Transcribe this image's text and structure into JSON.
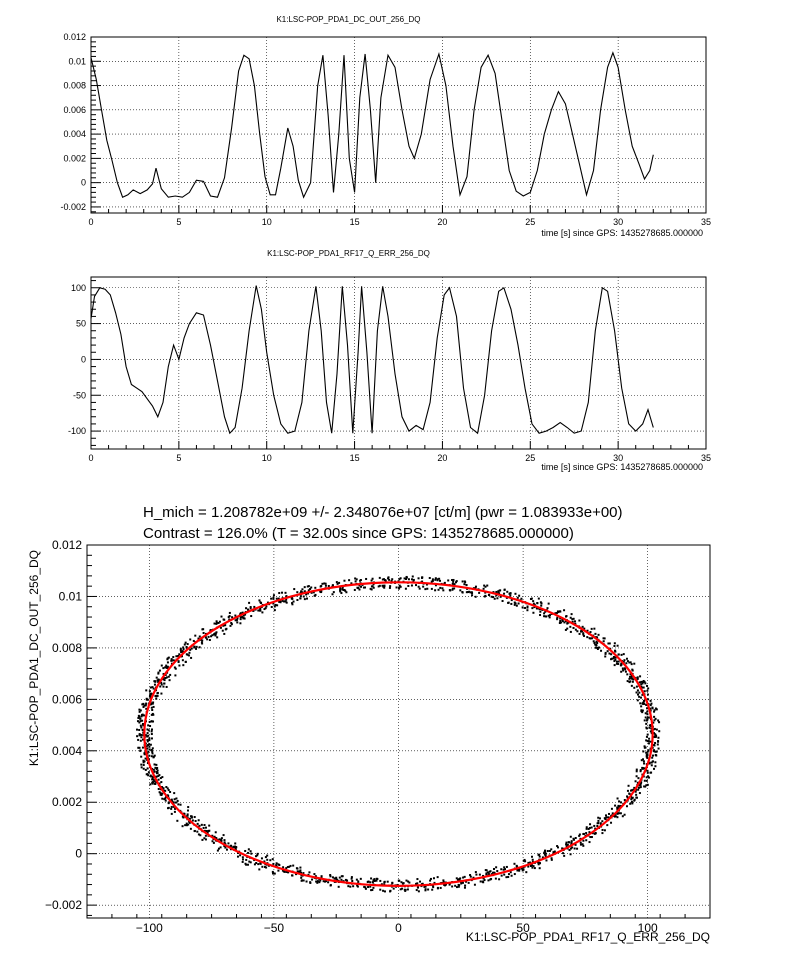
{
  "chart_data": [
    {
      "type": "line",
      "title": "K1:LSC-POP_PDA1_DC_OUT_256_DQ",
      "xlabel": "time [s] since GPS: 1435278685.000000",
      "ylabel": "",
      "xlim": [
        0,
        35
      ],
      "ylim": [
        -0.0025,
        0.012
      ],
      "x_ticks": [
        "0",
        "5",
        "10",
        "15",
        "20",
        "25",
        "30",
        "35"
      ],
      "y_ticks": [
        "-0.002",
        "0",
        "0.002",
        "0.004",
        "0.006",
        "0.008",
        "0.01",
        "0.012"
      ],
      "grid": true,
      "series": [
        {
          "color": "#000000",
          "points": [
            [
              0,
              0.0103
            ],
            [
              0.3,
              0.0085
            ],
            [
              0.6,
              0.006
            ],
            [
              0.9,
              0.0035
            ],
            [
              1.2,
              0.0018
            ],
            [
              1.5,
              0.0
            ],
            [
              1.8,
              -0.0012
            ],
            [
              2.1,
              -0.001
            ],
            [
              2.4,
              -0.0006
            ],
            [
              2.8,
              -0.0009
            ],
            [
              3.2,
              -0.0006
            ],
            [
              3.5,
              -0.0001
            ],
            [
              3.7,
              0.0012
            ],
            [
              4.0,
              -0.0005
            ],
            [
              4.4,
              -0.0012
            ],
            [
              4.8,
              -0.0011
            ],
            [
              5.2,
              -0.0012
            ],
            [
              5.6,
              -0.0008
            ],
            [
              6.0,
              0.0002
            ],
            [
              6.4,
              0.0001
            ],
            [
              6.8,
              -0.0011
            ],
            [
              7.2,
              -0.0012
            ],
            [
              7.6,
              0.0004
            ],
            [
              8.0,
              0.0045
            ],
            [
              8.4,
              0.0092
            ],
            [
              8.7,
              0.0105
            ],
            [
              9.0,
              0.0102
            ],
            [
              9.3,
              0.008
            ],
            [
              9.6,
              0.004
            ],
            [
              9.9,
              0.0005
            ],
            [
              10.2,
              -0.001
            ],
            [
              10.5,
              -0.001
            ],
            [
              10.8,
              0.0012
            ],
            [
              11.2,
              0.0045
            ],
            [
              11.5,
              0.003
            ],
            [
              11.8,
              0.0002
            ],
            [
              12.1,
              -0.0012
            ],
            [
              12.5,
              0.0
            ],
            [
              12.9,
              0.008
            ],
            [
              13.2,
              0.0105
            ],
            [
              13.5,
              0.0055
            ],
            [
              13.8,
              -0.0008
            ],
            [
              14.1,
              0.004
            ],
            [
              14.4,
              0.0105
            ],
            [
              14.7,
              0.002
            ],
            [
              15.0,
              -0.0008
            ],
            [
              15.3,
              0.007
            ],
            [
              15.6,
              0.0106
            ],
            [
              15.9,
              0.006
            ],
            [
              16.2,
              0.0
            ],
            [
              16.5,
              0.007
            ],
            [
              16.9,
              0.0105
            ],
            [
              17.3,
              0.0095
            ],
            [
              17.7,
              0.006
            ],
            [
              18.1,
              0.003
            ],
            [
              18.4,
              0.002
            ],
            [
              18.8,
              0.004
            ],
            [
              19.3,
              0.0085
            ],
            [
              19.8,
              0.0106
            ],
            [
              20.2,
              0.008
            ],
            [
              20.6,
              0.003
            ],
            [
              21.0,
              -0.001
            ],
            [
              21.4,
              0.0005
            ],
            [
              21.8,
              0.006
            ],
            [
              22.2,
              0.0095
            ],
            [
              22.6,
              0.0105
            ],
            [
              23.0,
              0.009
            ],
            [
              23.4,
              0.005
            ],
            [
              23.8,
              0.001
            ],
            [
              24.2,
              -0.0007
            ],
            [
              24.6,
              -0.0011
            ],
            [
              25.0,
              -0.0008
            ],
            [
              25.4,
              0.001
            ],
            [
              25.8,
              0.004
            ],
            [
              26.2,
              0.006
            ],
            [
              26.6,
              0.0075
            ],
            [
              27.0,
              0.0065
            ],
            [
              27.4,
              0.004
            ],
            [
              27.8,
              0.0015
            ],
            [
              28.2,
              -0.001
            ],
            [
              28.6,
              0.001
            ],
            [
              29.0,
              0.006
            ],
            [
              29.4,
              0.0095
            ],
            [
              29.7,
              0.0107
            ],
            [
              30.0,
              0.0095
            ],
            [
              30.4,
              0.006
            ],
            [
              30.8,
              0.003
            ],
            [
              31.2,
              0.0015
            ],
            [
              31.5,
              0.0003
            ],
            [
              31.8,
              0.001
            ],
            [
              32.0,
              0.0023
            ]
          ]
        }
      ]
    },
    {
      "type": "line",
      "title": "K1:LSC-POP_PDA1_RF17_Q_ERR_256_DQ",
      "xlabel": "time [s] since GPS: 1435278685.000000",
      "ylabel": "",
      "xlim": [
        0,
        35
      ],
      "ylim": [
        -125,
        115
      ],
      "x_ticks": [
        "0",
        "5",
        "10",
        "15",
        "20",
        "25",
        "30",
        "35"
      ],
      "y_ticks": [
        "-100",
        "-50",
        "0",
        "50",
        "100"
      ],
      "grid": true,
      "series": [
        {
          "color": "#000000",
          "points": [
            [
              0,
              57
            ],
            [
              0.2,
              88
            ],
            [
              0.5,
              100
            ],
            [
              0.8,
              98
            ],
            [
              1.1,
              90
            ],
            [
              1.4,
              65
            ],
            [
              1.7,
              35
            ],
            [
              2.0,
              -10
            ],
            [
              2.3,
              -35
            ],
            [
              2.6,
              -40
            ],
            [
              2.9,
              -45
            ],
            [
              3.2,
              -55
            ],
            [
              3.5,
              -65
            ],
            [
              3.8,
              -80
            ],
            [
              4.1,
              -60
            ],
            [
              4.4,
              -10
            ],
            [
              4.7,
              20
            ],
            [
              5.0,
              0
            ],
            [
              5.3,
              30
            ],
            [
              5.6,
              50
            ],
            [
              6.0,
              65
            ],
            [
              6.4,
              62
            ],
            [
              6.8,
              20
            ],
            [
              7.2,
              -30
            ],
            [
              7.6,
              -80
            ],
            [
              7.9,
              -103
            ],
            [
              8.2,
              -95
            ],
            [
              8.6,
              -40
            ],
            [
              9.0,
              40
            ],
            [
              9.4,
              103
            ],
            [
              9.7,
              70
            ],
            [
              10.0,
              10
            ],
            [
              10.4,
              -50
            ],
            [
              10.8,
              -90
            ],
            [
              11.2,
              -103
            ],
            [
              11.6,
              -100
            ],
            [
              12.0,
              -60
            ],
            [
              12.4,
              40
            ],
            [
              12.8,
              102
            ],
            [
              13.1,
              40
            ],
            [
              13.4,
              -60
            ],
            [
              13.7,
              -103
            ],
            [
              14.0,
              -20
            ],
            [
              14.3,
              102
            ],
            [
              14.6,
              20
            ],
            [
              14.9,
              -103
            ],
            [
              15.2,
              10
            ],
            [
              15.4,
              102
            ],
            [
              15.7,
              10
            ],
            [
              16.0,
              -103
            ],
            [
              16.3,
              40
            ],
            [
              16.6,
              102
            ],
            [
              16.9,
              60
            ],
            [
              17.3,
              -20
            ],
            [
              17.7,
              -80
            ],
            [
              18.1,
              -100
            ],
            [
              18.5,
              -92
            ],
            [
              18.9,
              -98
            ],
            [
              19.3,
              -60
            ],
            [
              19.7,
              30
            ],
            [
              20.1,
              90
            ],
            [
              20.4,
              100
            ],
            [
              20.8,
              60
            ],
            [
              21.2,
              -40
            ],
            [
              21.6,
              -95
            ],
            [
              22.0,
              -103
            ],
            [
              22.4,
              -50
            ],
            [
              22.8,
              40
            ],
            [
              23.2,
              95
            ],
            [
              23.5,
              100
            ],
            [
              23.9,
              70
            ],
            [
              24.3,
              20
            ],
            [
              24.7,
              -40
            ],
            [
              25.1,
              -90
            ],
            [
              25.5,
              -103
            ],
            [
              25.9,
              -100
            ],
            [
              26.3,
              -95
            ],
            [
              26.7,
              -88
            ],
            [
              27.1,
              -95
            ],
            [
              27.5,
              -103
            ],
            [
              27.9,
              -100
            ],
            [
              28.3,
              -60
            ],
            [
              28.7,
              40
            ],
            [
              29.1,
              100
            ],
            [
              29.4,
              95
            ],
            [
              29.8,
              40
            ],
            [
              30.2,
              -40
            ],
            [
              30.6,
              -90
            ],
            [
              31.0,
              -100
            ],
            [
              31.4,
              -90
            ],
            [
              31.7,
              -70
            ],
            [
              32.0,
              -95
            ]
          ]
        }
      ]
    },
    {
      "type": "scatter",
      "title": "H_mich = 1.208782e+09 +/- 2.348076e+07 [ct/m] (pwr = 1.083933e+00)",
      "subtitle": "Contrast = 126.0%  (T = 32.00s since GPS: 1435278685.000000)",
      "xlabel": "K1:LSC-POP_PDA1_RF17_Q_ERR_256_DQ",
      "ylabel": "K1:LSC-POP_PDA1_DC_OUT_256_DQ",
      "xlim": [
        -125,
        125
      ],
      "ylim": [
        -0.0025,
        0.012
      ],
      "x_ticks": [
        "−100",
        "−50",
        "0",
        "50",
        "100"
      ],
      "y_ticks": [
        "−0.002",
        "0",
        "0.002",
        "0.004",
        "0.006",
        "0.008",
        "0.01",
        "0.012"
      ],
      "grid": true,
      "series": [
        {
          "color": "#000000",
          "shape": "ellipse-band",
          "center": [
            0,
            0.00465
          ],
          "radius": [
            102,
            0.0059
          ],
          "spread": [
            3,
            0.00025
          ]
        }
      ],
      "fit": {
        "color": "#ff0000",
        "center": [
          0,
          0.00465
        ],
        "radius": [
          102,
          0.0059
        ]
      }
    }
  ]
}
